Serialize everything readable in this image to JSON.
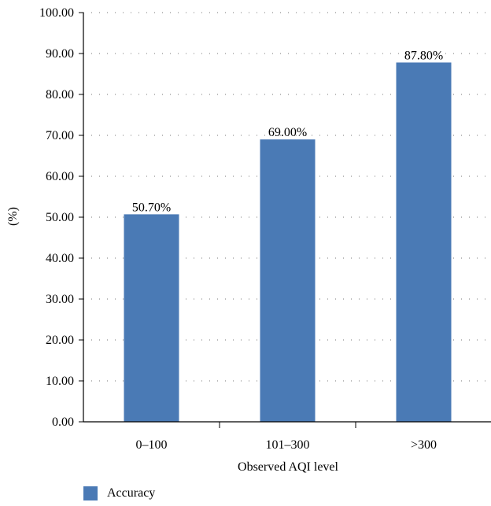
{
  "chart_data": {
    "type": "bar",
    "categories": [
      "0–100",
      "101–300",
      ">300"
    ],
    "series": [
      {
        "name": "Accuracy",
        "values": [
          50.7,
          69.0,
          87.8
        ],
        "color": "#4a7ab5"
      }
    ],
    "data_labels": [
      "50.70%",
      "69.00%",
      "87.80%"
    ],
    "title": "",
    "xlabel": "Observed AQI level",
    "ylabel": "(%)",
    "ylim": [
      0,
      100
    ],
    "yticks": [
      "0.00",
      "10.00",
      "20.00",
      "30.00",
      "40.00",
      "50.00",
      "60.00",
      "70.00",
      "80.00",
      "90.00",
      "100.00"
    ],
    "grid": "dotted horizontal",
    "legend_position": "bottom-left"
  }
}
